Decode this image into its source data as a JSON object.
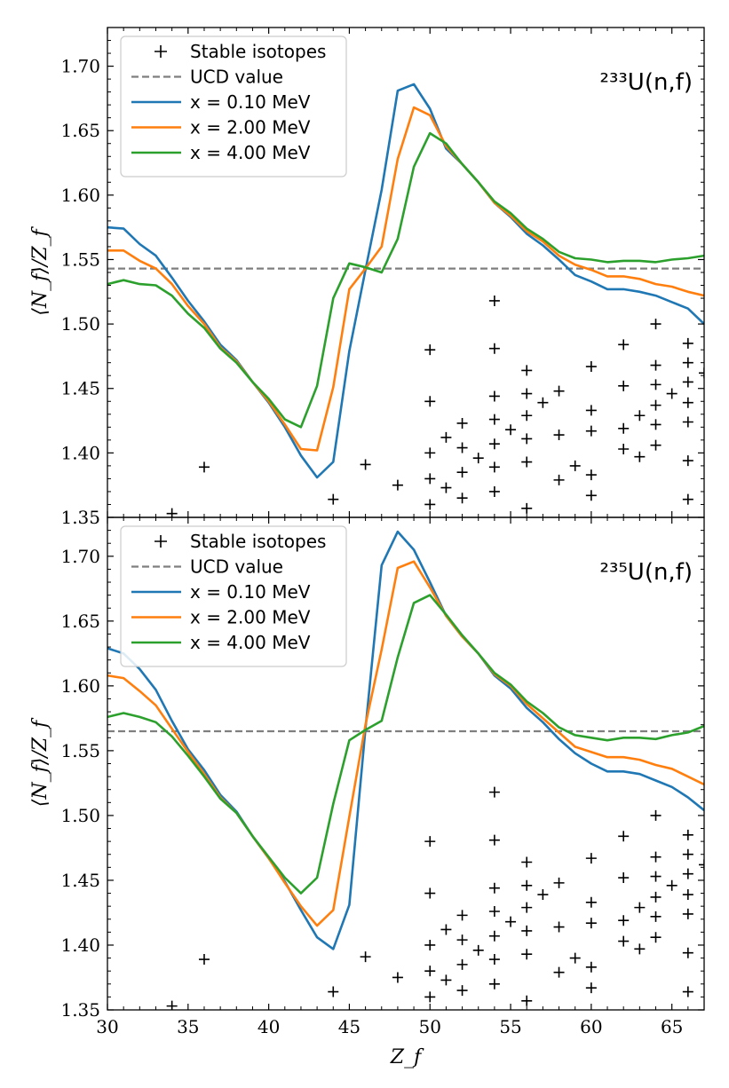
{
  "chart_data": [
    {
      "type": "line",
      "panel_label": "²³³U(n,f)",
      "xlim": [
        30,
        67
      ],
      "ylim": [
        1.35,
        1.73
      ],
      "xlabel": "Z_f",
      "ylabel": "⟨N_f⟩/Z_f",
      "x_ticks": [
        "30",
        "35",
        "40",
        "45",
        "50",
        "55",
        "60",
        "65"
      ],
      "y_ticks": [
        "1.35",
        "1.40",
        "1.45",
        "1.50",
        "1.55",
        "1.60",
        "1.65",
        "1.70"
      ],
      "legend": [
        "Stable isotopes",
        "UCD value",
        "x = 0.10 MeV",
        "x = 2.00 MeV",
        "x = 4.00 MeV"
      ],
      "legend_position": "upper-left",
      "ucd_value": 1.543,
      "x": [
        30,
        31,
        32,
        33,
        34,
        35,
        36,
        37,
        38,
        39,
        40,
        41,
        42,
        43,
        44,
        45,
        46,
        47,
        48,
        49,
        50,
        51,
        52,
        53,
        54,
        55,
        56,
        57,
        58,
        59,
        60,
        61,
        62,
        63,
        64,
        65,
        66,
        67
      ],
      "series": [
        {
          "name": "x = 0.10 MeV",
          "color": "#1f77b4",
          "values": [
            1.575,
            1.574,
            1.562,
            1.553,
            1.536,
            1.518,
            1.502,
            1.484,
            1.472,
            1.455,
            1.439,
            1.42,
            1.398,
            1.381,
            1.393,
            1.479,
            1.542,
            1.604,
            1.681,
            1.686,
            1.667,
            1.636,
            1.624,
            1.61,
            1.594,
            1.583,
            1.57,
            1.561,
            1.55,
            1.538,
            1.533,
            1.527,
            1.527,
            1.525,
            1.522,
            1.517,
            1.512,
            1.5
          ]
        },
        {
          "name": "x = 2.00 MeV",
          "color": "#ff7f0e",
          "values": [
            1.557,
            1.557,
            1.549,
            1.543,
            1.531,
            1.514,
            1.5,
            1.482,
            1.471,
            1.455,
            1.44,
            1.422,
            1.403,
            1.402,
            1.451,
            1.527,
            1.543,
            1.56,
            1.628,
            1.668,
            1.662,
            1.638,
            1.624,
            1.61,
            1.594,
            1.584,
            1.572,
            1.564,
            1.553,
            1.546,
            1.542,
            1.537,
            1.537,
            1.535,
            1.531,
            1.529,
            1.525,
            1.522
          ]
        },
        {
          "name": "x = 4.00 MeV",
          "color": "#2ca02c",
          "values": [
            1.531,
            1.534,
            1.531,
            1.53,
            1.522,
            1.508,
            1.497,
            1.481,
            1.47,
            1.455,
            1.442,
            1.426,
            1.42,
            1.452,
            1.52,
            1.547,
            1.544,
            1.54,
            1.566,
            1.622,
            1.648,
            1.64,
            1.624,
            1.61,
            1.595,
            1.586,
            1.574,
            1.566,
            1.556,
            1.551,
            1.55,
            1.548,
            1.549,
            1.549,
            1.548,
            1.55,
            1.551,
            1.553
          ]
        }
      ],
      "stable_isotopes": [
        [
          34,
          1.353
        ],
        [
          36,
          1.389
        ],
        [
          44,
          1.364
        ],
        [
          46,
          1.391
        ],
        [
          48,
          1.375
        ],
        [
          50,
          1.36
        ],
        [
          50,
          1.38
        ],
        [
          50,
          1.4
        ],
        [
          50,
          1.44
        ],
        [
          50,
          1.48
        ],
        [
          51,
          1.373
        ],
        [
          51,
          1.412
        ],
        [
          52,
          1.365
        ],
        [
          52,
          1.385
        ],
        [
          52,
          1.404
        ],
        [
          52,
          1.423
        ],
        [
          53,
          1.396
        ],
        [
          54,
          1.37
        ],
        [
          54,
          1.389
        ],
        [
          54,
          1.407
        ],
        [
          54,
          1.426
        ],
        [
          54,
          1.444
        ],
        [
          54,
          1.481
        ],
        [
          54,
          1.518
        ],
        [
          55,
          1.418
        ],
        [
          56,
          1.357
        ],
        [
          56,
          1.393
        ],
        [
          56,
          1.411
        ],
        [
          56,
          1.429
        ],
        [
          56,
          1.446
        ],
        [
          56,
          1.464
        ],
        [
          57,
          1.439
        ],
        [
          58,
          1.379
        ],
        [
          58,
          1.414
        ],
        [
          58,
          1.448
        ],
        [
          59,
          1.39
        ],
        [
          60,
          1.367
        ],
        [
          60,
          1.383
        ],
        [
          60,
          1.417
        ],
        [
          60,
          1.433
        ],
        [
          60,
          1.467
        ],
        [
          62,
          1.403
        ],
        [
          62,
          1.419
        ],
        [
          62,
          1.452
        ],
        [
          62,
          1.484
        ],
        [
          63,
          1.397
        ],
        [
          63,
          1.429
        ],
        [
          64,
          1.406
        ],
        [
          64,
          1.422
        ],
        [
          64,
          1.437
        ],
        [
          64,
          1.453
        ],
        [
          64,
          1.468
        ],
        [
          64,
          1.5
        ],
        [
          65,
          1.446
        ],
        [
          66,
          1.364
        ],
        [
          66,
          1.394
        ],
        [
          66,
          1.424
        ],
        [
          66,
          1.439
        ],
        [
          66,
          1.455
        ],
        [
          66,
          1.47
        ],
        [
          66,
          1.485
        ],
        [
          67,
          1.462
        ]
      ]
    },
    {
      "type": "line",
      "panel_label": "²³⁵U(n,f)",
      "xlim": [
        30,
        67
      ],
      "ylim": [
        1.35,
        1.73
      ],
      "xlabel": "Z_f",
      "ylabel": "⟨N_f⟩/Z_f",
      "x_ticks": [
        "30",
        "35",
        "40",
        "45",
        "50",
        "55",
        "60",
        "65"
      ],
      "y_ticks": [
        "1.35",
        "1.40",
        "1.45",
        "1.50",
        "1.55",
        "1.60",
        "1.65",
        "1.70"
      ],
      "legend": [
        "Stable isotopes",
        "UCD value",
        "x = 0.10 MeV",
        "x = 2.00 MeV",
        "x = 4.00 MeV"
      ],
      "legend_position": "upper-left",
      "ucd_value": 1.565,
      "x": [
        30,
        31,
        32,
        33,
        34,
        35,
        36,
        37,
        38,
        39,
        40,
        41,
        42,
        43,
        44,
        45,
        46,
        47,
        48,
        49,
        50,
        51,
        52,
        53,
        54,
        55,
        56,
        57,
        58,
        59,
        60,
        61,
        62,
        63,
        64,
        65,
        66,
        67
      ],
      "series": [
        {
          "name": "x = 0.10 MeV",
          "color": "#1f77b4",
          "values": [
            1.629,
            1.625,
            1.613,
            1.597,
            1.573,
            1.551,
            1.535,
            1.516,
            1.503,
            1.484,
            1.467,
            1.449,
            1.427,
            1.406,
            1.397,
            1.431,
            1.567,
            1.693,
            1.719,
            1.705,
            1.68,
            1.654,
            1.638,
            1.625,
            1.608,
            1.598,
            1.583,
            1.572,
            1.559,
            1.548,
            1.54,
            1.534,
            1.534,
            1.532,
            1.527,
            1.522,
            1.514,
            1.504
          ]
        },
        {
          "name": "x = 2.00 MeV",
          "color": "#ff7f0e",
          "values": [
            1.608,
            1.606,
            1.596,
            1.585,
            1.567,
            1.549,
            1.532,
            1.514,
            1.502,
            1.484,
            1.467,
            1.448,
            1.43,
            1.415,
            1.427,
            1.499,
            1.57,
            1.628,
            1.691,
            1.696,
            1.676,
            1.654,
            1.638,
            1.625,
            1.609,
            1.6,
            1.586,
            1.575,
            1.564,
            1.553,
            1.549,
            1.545,
            1.545,
            1.543,
            1.539,
            1.536,
            1.53,
            1.524
          ]
        },
        {
          "name": "x = 4.00 MeV",
          "color": "#2ca02c",
          "values": [
            1.576,
            1.579,
            1.576,
            1.572,
            1.561,
            1.546,
            1.53,
            1.513,
            1.502,
            1.484,
            1.468,
            1.452,
            1.44,
            1.452,
            1.509,
            1.558,
            1.566,
            1.573,
            1.622,
            1.664,
            1.67,
            1.655,
            1.639,
            1.625,
            1.61,
            1.601,
            1.588,
            1.579,
            1.568,
            1.562,
            1.56,
            1.558,
            1.56,
            1.56,
            1.559,
            1.562,
            1.564,
            1.569
          ]
        }
      ],
      "stable_isotopes": [
        [
          34,
          1.353
        ],
        [
          36,
          1.389
        ],
        [
          44,
          1.364
        ],
        [
          46,
          1.391
        ],
        [
          48,
          1.375
        ],
        [
          50,
          1.36
        ],
        [
          50,
          1.38
        ],
        [
          50,
          1.4
        ],
        [
          50,
          1.44
        ],
        [
          50,
          1.48
        ],
        [
          51,
          1.373
        ],
        [
          51,
          1.412
        ],
        [
          52,
          1.365
        ],
        [
          52,
          1.385
        ],
        [
          52,
          1.404
        ],
        [
          52,
          1.423
        ],
        [
          53,
          1.396
        ],
        [
          54,
          1.37
        ],
        [
          54,
          1.389
        ],
        [
          54,
          1.407
        ],
        [
          54,
          1.426
        ],
        [
          54,
          1.444
        ],
        [
          54,
          1.481
        ],
        [
          54,
          1.518
        ],
        [
          55,
          1.418
        ],
        [
          56,
          1.357
        ],
        [
          56,
          1.393
        ],
        [
          56,
          1.411
        ],
        [
          56,
          1.429
        ],
        [
          56,
          1.446
        ],
        [
          56,
          1.464
        ],
        [
          57,
          1.439
        ],
        [
          58,
          1.379
        ],
        [
          58,
          1.414
        ],
        [
          58,
          1.448
        ],
        [
          59,
          1.39
        ],
        [
          60,
          1.367
        ],
        [
          60,
          1.383
        ],
        [
          60,
          1.417
        ],
        [
          60,
          1.433
        ],
        [
          60,
          1.467
        ],
        [
          62,
          1.403
        ],
        [
          62,
          1.419
        ],
        [
          62,
          1.452
        ],
        [
          62,
          1.484
        ],
        [
          63,
          1.397
        ],
        [
          63,
          1.429
        ],
        [
          64,
          1.406
        ],
        [
          64,
          1.422
        ],
        [
          64,
          1.437
        ],
        [
          64,
          1.453
        ],
        [
          64,
          1.468
        ],
        [
          64,
          1.5
        ],
        [
          65,
          1.446
        ],
        [
          66,
          1.364
        ],
        [
          66,
          1.394
        ],
        [
          66,
          1.424
        ],
        [
          66,
          1.439
        ],
        [
          66,
          1.455
        ],
        [
          66,
          1.47
        ],
        [
          66,
          1.485
        ],
        [
          67,
          1.462
        ]
      ]
    }
  ],
  "colors": {
    "ucd_line": "#7f7f7f",
    "isotope_marker": "#000000",
    "axis": "#000000"
  }
}
